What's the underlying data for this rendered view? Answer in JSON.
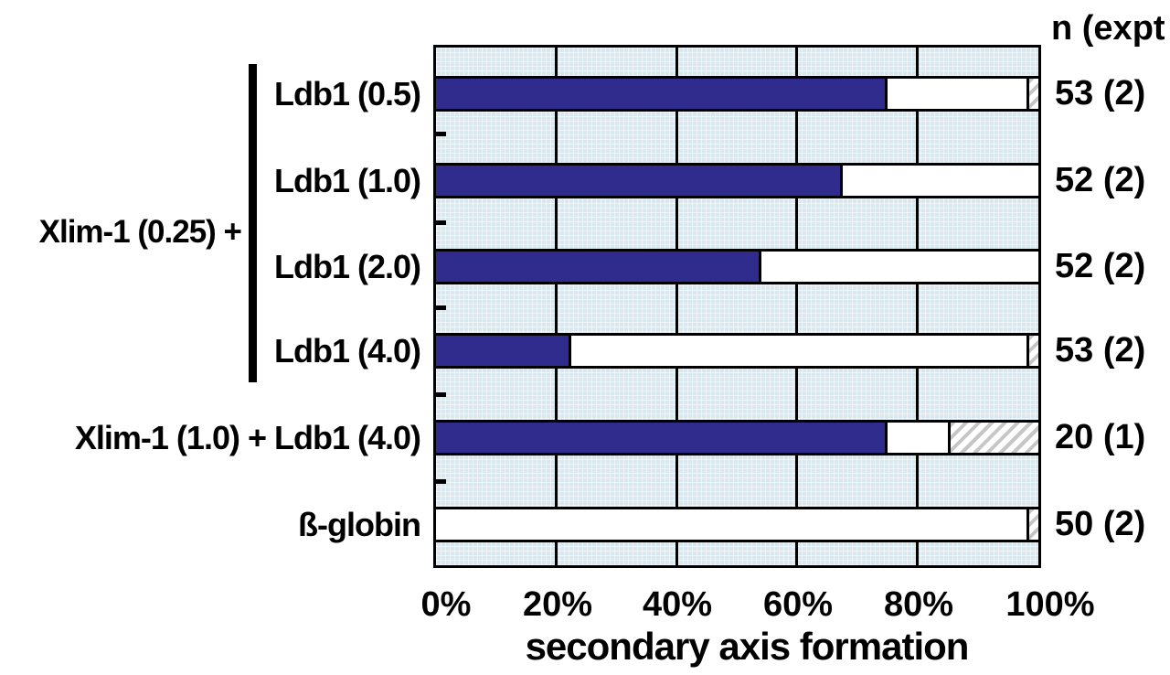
{
  "chart_data": {
    "type": "bar",
    "orientation": "horizontal_stacked",
    "xlabel": "secondary axis formation",
    "x_tick_labels": [
      "0%",
      "20%",
      "40%",
      "60%",
      "80%",
      "100%"
    ],
    "xlim": [
      0,
      100
    ],
    "grid": "vertical lines every 20%",
    "n_column_header": "n (expt",
    "group_label": "Xlim-1 (0.25) +",
    "group_rows": [
      0,
      1,
      2,
      3
    ],
    "segment_order": [
      "navy",
      "white",
      "hatched"
    ],
    "rows": [
      {
        "label": "Ldb1 (0.5)",
        "n": "53 (2)",
        "segments": {
          "navy": 75,
          "white": 23,
          "hatched": 2
        }
      },
      {
        "label": "Ldb1 (1.0)",
        "n": "52 (2)",
        "segments": {
          "navy": 67.5,
          "white": 32.5,
          "hatched": 0
        }
      },
      {
        "label": "Ldb1 (2.0)",
        "n": "52 (2)",
        "segments": {
          "navy": 54,
          "white": 46,
          "hatched": 0
        }
      },
      {
        "label": "Ldb1 (4.0)",
        "n": "53 (2)",
        "segments": {
          "navy": 22.5,
          "white": 75.5,
          "hatched": 2
        }
      },
      {
        "label": "Xlim-1 (1.0) + Ldb1 (4.0)",
        "n": "20 (1)",
        "segments": {
          "navy": 75,
          "white": 10,
          "hatched": 15
        }
      },
      {
        "label": "ß-globin",
        "n": "50 (2)",
        "segments": {
          "navy": 0,
          "white": 98,
          "hatched": 2
        }
      }
    ]
  },
  "colors": {
    "navy_segment": "#302c8e",
    "plot_background": "#d9e7ee",
    "hatch_stripe": "#c6c6c6",
    "ink": "#000000"
  }
}
